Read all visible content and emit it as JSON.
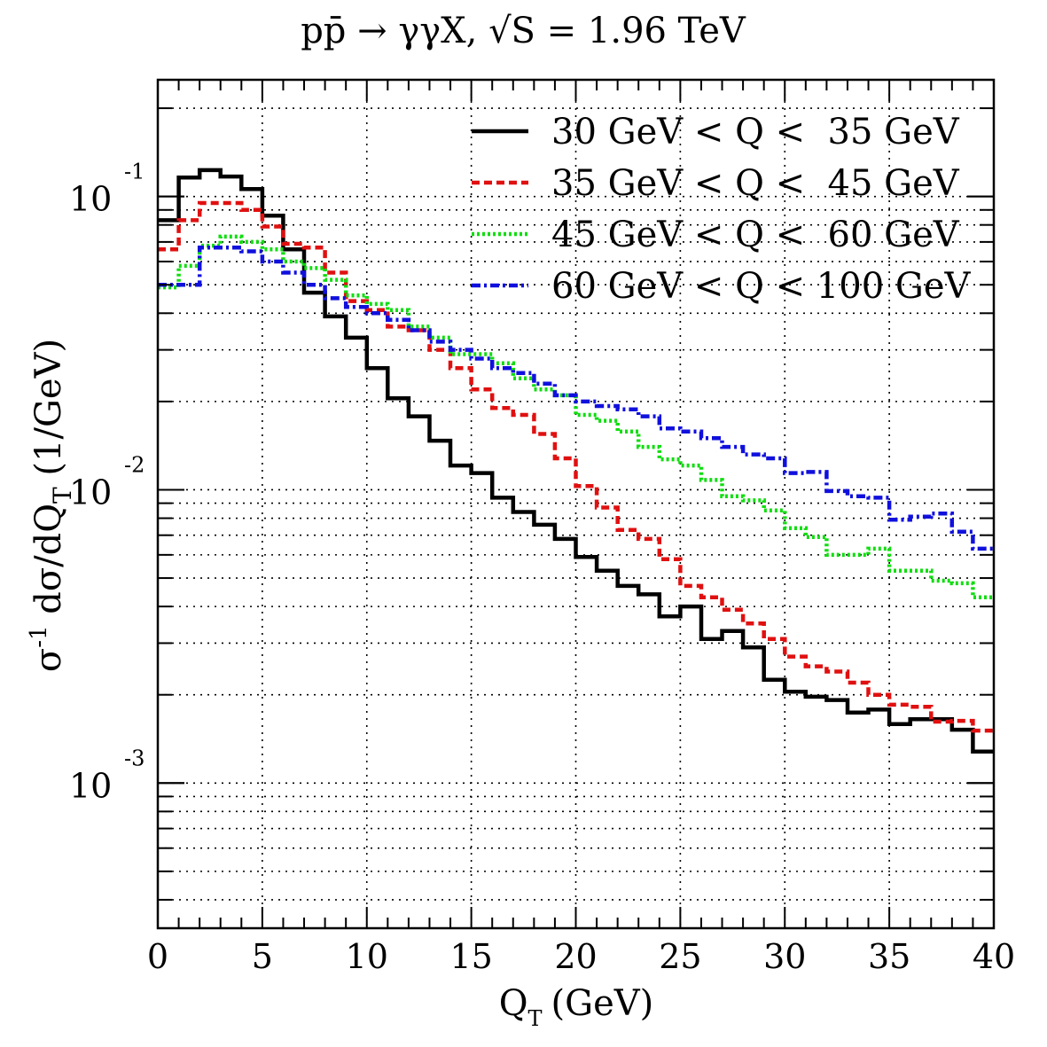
{
  "chart_data": {
    "type": "line",
    "title": "pp̄ → γγX, √S = 1.96 TeV",
    "xlabel": "Q",
    "xlabel_sub": "T",
    "xlabel_unit": "(GeV)",
    "ylabel": "σ⁻¹ dσ/dQ_T (1/GeV)",
    "ylabel_parts": {
      "sigma": "σ",
      "inv": "-1",
      "mid": " dσ/dQ",
      "sub": "T",
      "unit": " (1/GeV)"
    },
    "xlim": [
      0,
      40
    ],
    "ylim": [
      0.00032,
      0.25
    ],
    "yscale": "log",
    "grid": true,
    "legend_position": "top-right",
    "x_ticks": [
      "0",
      "5",
      "10",
      "15",
      "20",
      "25",
      "30",
      "35",
      "40"
    ],
    "y_ticks": [
      {
        "base": "10",
        "exp": "-1",
        "value": 0.1
      },
      {
        "base": "10",
        "exp": "-2",
        "value": 0.01
      },
      {
        "base": "10",
        "exp": "-3",
        "value": 0.001
      }
    ],
    "bin_edges": [
      0,
      1,
      2,
      3,
      4,
      5,
      6,
      7,
      8,
      9,
      10,
      11,
      12,
      13,
      14,
      15,
      16,
      17,
      18,
      19,
      20,
      21,
      22,
      23,
      24,
      25,
      26,
      27,
      28,
      29,
      30,
      31,
      32,
      33,
      34,
      35,
      36,
      37,
      38,
      39,
      40
    ],
    "series": [
      {
        "name": "30 GeV < Q <  35 GeV",
        "color": "#000000",
        "style": "solid",
        "values": [
          0.083,
          0.116,
          0.123,
          0.117,
          0.106,
          0.086,
          0.066,
          0.047,
          0.039,
          0.033,
          0.026,
          0.0205,
          0.0178,
          0.0147,
          0.0121,
          0.0114,
          0.0094,
          0.0084,
          0.0076,
          0.0068,
          0.0059,
          0.0053,
          0.0047,
          0.0044,
          0.0037,
          0.004,
          0.0031,
          0.0033,
          0.0029,
          0.00225,
          0.00205,
          0.00197,
          0.00192,
          0.00174,
          0.00178,
          0.00159,
          0.00165,
          0.00165,
          0.00152,
          0.00128
        ]
      },
      {
        "name": "35 GeV < Q <  45 GeV",
        "color": "#e01010",
        "style": "dashed",
        "values": [
          0.066,
          0.083,
          0.095,
          0.095,
          0.09,
          0.079,
          0.069,
          0.067,
          0.055,
          0.044,
          0.041,
          0.036,
          0.035,
          0.03,
          0.026,
          0.022,
          0.019,
          0.018,
          0.0155,
          0.0128,
          0.0103,
          0.0087,
          0.0073,
          0.0068,
          0.0058,
          0.0047,
          0.0043,
          0.0039,
          0.0035,
          0.0031,
          0.0027,
          0.0025,
          0.0024,
          0.0022,
          0.002,
          0.00185,
          0.00182,
          0.00162,
          0.00163,
          0.00151
        ]
      },
      {
        "name": "45 GeV < Q <  60 GeV",
        "color": "#10dd10",
        "style": "dotted",
        "values": [
          0.049,
          0.058,
          0.068,
          0.073,
          0.07,
          0.066,
          0.06,
          0.057,
          0.052,
          0.046,
          0.043,
          0.041,
          0.036,
          0.033,
          0.029,
          0.029,
          0.027,
          0.024,
          0.022,
          0.021,
          0.018,
          0.0172,
          0.0158,
          0.014,
          0.0127,
          0.0121,
          0.0108,
          0.0095,
          0.0092,
          0.0085,
          0.0074,
          0.0069,
          0.006,
          0.006,
          0.0063,
          0.0053,
          0.0053,
          0.0049,
          0.0048,
          0.0043
        ]
      },
      {
        "name": "60 GeV < Q < 100 GeV",
        "color": "#1010dd",
        "style": "dashdot",
        "values": [
          0.05,
          0.05,
          0.067,
          0.067,
          0.065,
          0.06,
          0.055,
          0.05,
          0.045,
          0.042,
          0.04,
          0.038,
          0.035,
          0.032,
          0.03,
          0.028,
          0.026,
          0.025,
          0.023,
          0.021,
          0.02,
          0.0193,
          0.0188,
          0.0178,
          0.0162,
          0.0158,
          0.015,
          0.014,
          0.0132,
          0.0128,
          0.0114,
          0.0115,
          0.0099,
          0.0095,
          0.0094,
          0.0079,
          0.0081,
          0.0083,
          0.0072,
          0.0063
        ]
      }
    ]
  }
}
